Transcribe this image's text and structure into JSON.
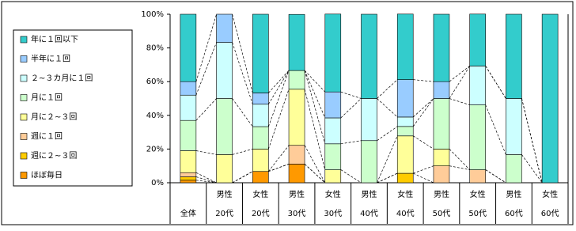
{
  "chart_data": {
    "type": "stacked_bar",
    "categories": [
      "全体",
      "20代",
      "20代",
      "30代",
      "30代",
      "40代",
      "40代",
      "50代",
      "50代",
      "60代",
      "60代"
    ],
    "category_groups": [
      null,
      "男性",
      "女性",
      "男性",
      "女性",
      "男性",
      "女性",
      "男性",
      "女性",
      "男性",
      "女性"
    ],
    "ylim": [
      0,
      100
    ],
    "yticks": [
      {
        "value": 0,
        "label": "0%"
      },
      {
        "value": 20,
        "label": "20%"
      },
      {
        "value": 40,
        "label": "40%"
      },
      {
        "value": 60,
        "label": "60%"
      },
      {
        "value": 80,
        "label": "80%"
      },
      {
        "value": 100,
        "label": "100%"
      }
    ],
    "legend_position": "left",
    "series": [
      {
        "name": "ほぼ毎日",
        "color": "#ff9900",
        "values": [
          1.5,
          0,
          6.7,
          11.1,
          0,
          0,
          0,
          0,
          0,
          0,
          0
        ]
      },
      {
        "name": "週に２~３回",
        "color": "#ffcc00",
        "values": [
          2,
          0,
          0,
          0,
          0,
          0,
          5.6,
          0,
          0,
          0,
          0
        ]
      },
      {
        "name": "週に１回",
        "color": "#ffcc99",
        "values": [
          2.5,
          0,
          0,
          11.1,
          0,
          0,
          0,
          10,
          7.7,
          0,
          0
        ]
      },
      {
        "name": "月に２~３回",
        "color": "#ffff99",
        "values": [
          13,
          16.7,
          13.3,
          33.3,
          7.7,
          0,
          22.2,
          10,
          0,
          0,
          0
        ]
      },
      {
        "name": "月に１回",
        "color": "#ccffcc",
        "values": [
          18,
          33.3,
          13.3,
          11.1,
          15.4,
          25,
          5.6,
          30,
          38.5,
          16.7,
          0
        ]
      },
      {
        "name": "２~３カ月に１回",
        "color": "#ccffff",
        "values": [
          15,
          33.3,
          13.3,
          0,
          15.4,
          25,
          5.6,
          0,
          23.1,
          33.3,
          0
        ]
      },
      {
        "name": "半年に１回",
        "color": "#99ccff",
        "values": [
          8,
          16.7,
          6.7,
          0,
          15.4,
          0,
          22.2,
          10,
          0,
          0,
          0
        ]
      },
      {
        "name": "年に１回以下",
        "color": "#33cccc",
        "values": [
          40,
          0,
          46.7,
          33.3,
          46.2,
          50,
          38.9,
          40,
          30.8,
          50,
          100
        ]
      }
    ]
  }
}
